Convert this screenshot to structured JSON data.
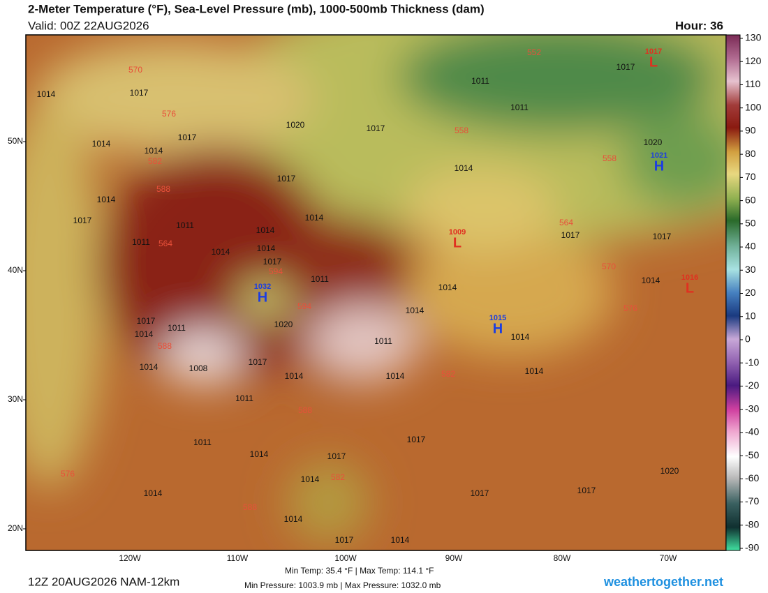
{
  "header": {
    "title": "2-Meter Temperature (°F), Sea-Level Pressure (mb), 1000-500mb Thickness (dam)",
    "valid": "Valid: 00Z 22AUG2026",
    "hour": "Hour: 36"
  },
  "map": {
    "lat_labels": [
      "50N",
      "40N",
      "30N",
      "20N"
    ],
    "lon_labels": [
      "120W",
      "110W",
      "100W",
      "90W",
      "80W",
      "70W"
    ],
    "pressure_centers": [
      {
        "type": "L",
        "value": "1017"
      },
      {
        "type": "H",
        "value": "1021"
      },
      {
        "type": "H",
        "value": "1032"
      },
      {
        "type": "H",
        "value": "1015"
      },
      {
        "type": "L",
        "value": "1009"
      },
      {
        "type": "L",
        "value": "1016"
      }
    ],
    "isobar_labels": [
      "1017",
      "1011",
      "1017",
      "1011",
      "1020",
      "1017",
      "1014",
      "1017",
      "1014",
      "1014",
      "1020",
      "1014",
      "1017",
      "1014",
      "1011",
      "1014",
      "1017",
      "1014",
      "1011",
      "1017",
      "1017",
      "1014",
      "1014",
      "1017",
      "1011",
      "1014",
      "1014",
      "1014",
      "1017",
      "1011",
      "1014",
      "1020",
      "1011",
      "1014",
      "1014",
      "1008",
      "1017",
      "1014",
      "1014",
      "1014",
      "1011",
      "1014",
      "1017",
      "1011",
      "1017",
      "1014",
      "1014",
      "1017",
      "1017",
      "1020",
      "1014",
      "1017",
      "1014"
    ],
    "thickness_labels": [
      "570",
      "552",
      "576",
      "558",
      "582",
      "588",
      "558",
      "564",
      "564",
      "570",
      "576",
      "594",
      "594",
      "588",
      "582",
      "588",
      "582",
      "576",
      "588"
    ]
  },
  "colorbar": {
    "ticks": [
      130,
      120,
      110,
      100,
      90,
      80,
      70,
      60,
      50,
      40,
      30,
      20,
      10,
      0,
      -10,
      -20,
      -30,
      -40,
      -50,
      -60,
      -70,
      -80,
      -90
    ]
  },
  "footer": {
    "run": "12Z 20AUG2026 NAM-12km",
    "stats_temp": "Min Temp:  35.4 °F | Max Temp: 114.1 °F",
    "stats_pressure": "Min Pressure: 1003.9 mb | Max Pressure: 1032.0 mb",
    "site": "weathertogether.net"
  }
}
